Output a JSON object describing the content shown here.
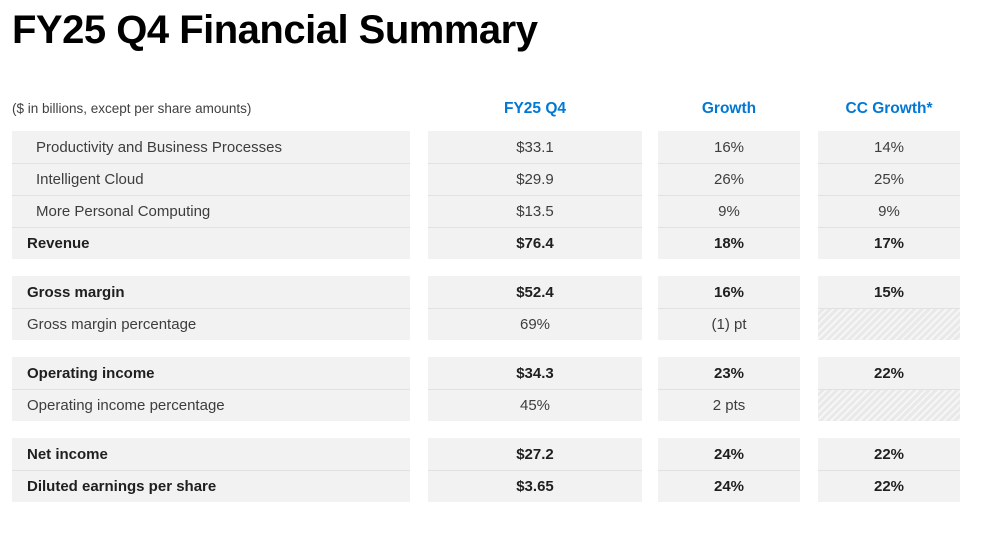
{
  "title": "FY25 Q4 Financial Summary",
  "note": "($ in billions, except per share amounts)",
  "columns": {
    "q4": "FY25 Q4",
    "growth": "Growth",
    "cc": "CC Growth*"
  },
  "colors": {
    "accent_blue": "#0078D4",
    "row_bg": "#F2F2F2",
    "subtotal_rule": "#3F3F3F",
    "text_regular": "#3D3D3D",
    "text_bold": "#1F1F1F"
  },
  "blocks": [
    {
      "rows": [
        {
          "label": "Productivity and Business Processes",
          "q4": "$33.1",
          "growth": "16%",
          "cc": "14%"
        },
        {
          "label": "Intelligent Cloud",
          "q4": "$29.9",
          "growth": "26%",
          "cc": "25%"
        },
        {
          "label": "More Personal Computing",
          "q4": "$13.5",
          "growth": "9%",
          "cc": "9%"
        },
        {
          "label": "Revenue",
          "q4": "$76.4",
          "growth": "18%",
          "cc": "17%"
        }
      ]
    },
    {
      "rows": [
        {
          "label": "Gross margin",
          "q4": "$52.4",
          "growth": "16%",
          "cc": "15%"
        },
        {
          "label": "Gross margin percentage",
          "q4": "69%",
          "growth": "(1) pt",
          "cc": ""
        }
      ]
    },
    {
      "rows": [
        {
          "label": "Operating income",
          "q4": "$34.3",
          "growth": "23%",
          "cc": "22%"
        },
        {
          "label": "Operating income percentage",
          "q4": "45%",
          "growth": "2 pts",
          "cc": ""
        }
      ]
    },
    {
      "rows": [
        {
          "label": "Net income",
          "q4": "$27.2",
          "growth": "24%",
          "cc": "22%"
        },
        {
          "label": "Diluted earnings per share",
          "q4": "$3.65",
          "growth": "24%",
          "cc": "22%"
        }
      ]
    }
  ]
}
